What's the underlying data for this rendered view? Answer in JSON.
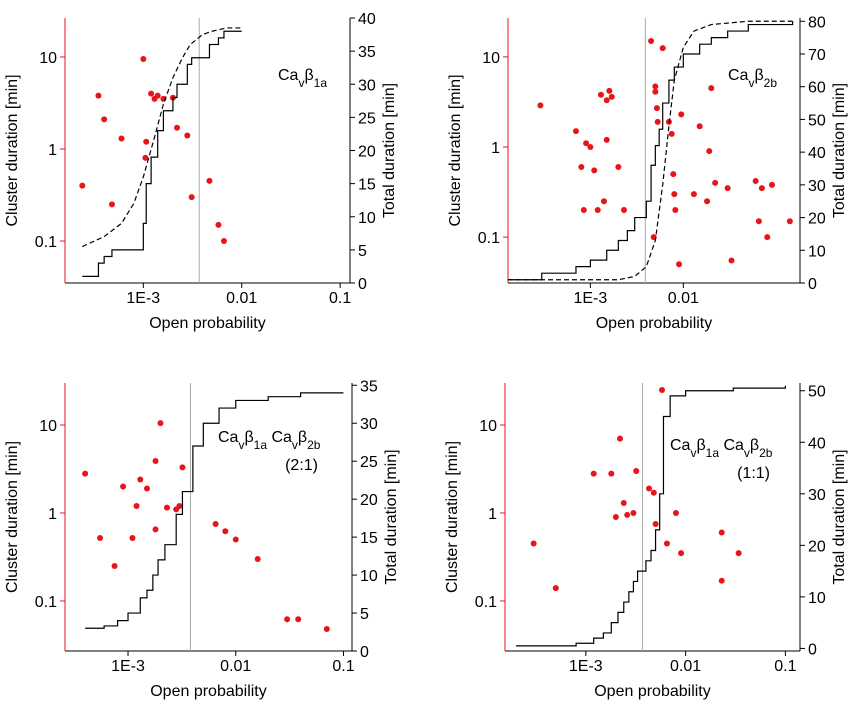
{
  "chart_data": [
    {
      "type": "scatter",
      "xlabel": "Open probability",
      "ylabel": "Cluster duration [min]",
      "y2label": "Total duration [min]",
      "annotation": [
        "Ca",
        "v",
        "β",
        "1a"
      ],
      "xscale": "log",
      "yscale": "log",
      "xlim": [
        0.00016,
        0.126
      ],
      "ylim": [
        0.035,
        26.5
      ],
      "y2lim": [
        0,
        40
      ],
      "xticks": [
        {
          "value": 0.001,
          "label": "1E-3"
        },
        0.01,
        0.1
      ],
      "yticks": [
        0.1,
        1,
        10
      ],
      "y2ticks": [
        0,
        5,
        10,
        15,
        20,
        25,
        30,
        35,
        40
      ],
      "reference_x": 0.0037,
      "ylabel_color": "#e8141b",
      "series": [
        {
          "kind": "points",
          "color": "#e8141b",
          "x": [
            0.00024,
            0.00035,
            0.0004,
            0.00048,
            0.0006,
            0.001,
            0.00105,
            0.00107,
            0.0012,
            0.0013,
            0.0014,
            0.0016,
            0.002,
            0.0022,
            0.0028,
            0.0031,
            0.0047,
            0.0058,
            0.0066
          ],
          "values": [
            0.4,
            3.8,
            2.1,
            0.25,
            1.3,
            9.5,
            0.8,
            1.2,
            4,
            3.5,
            3.8,
            3.5,
            3.6,
            1.7,
            1.4,
            0.3,
            0.45,
            0.15,
            0.1
          ]
        },
        {
          "kind": "step",
          "axis": "y2",
          "color": "#000000",
          "x": [
            0.00024,
            0.00035,
            0.0004,
            0.00048,
            0.001,
            0.00107,
            0.0012,
            0.0014,
            0.0016,
            0.002,
            0.0022,
            0.0028,
            0.0031,
            0.0047,
            0.0058,
            0.0066,
            0.01
          ],
          "values": [
            1,
            3,
            4,
            5,
            9,
            15,
            19,
            23,
            26,
            28,
            30,
            33,
            34,
            36,
            37,
            38,
            38
          ]
        },
        {
          "kind": "dashed",
          "axis": "y2",
          "color": "#000000",
          "x": [
            0.00024,
            0.0004,
            0.0006,
            0.0008,
            0.001,
            0.0013,
            0.0016,
            0.002,
            0.0025,
            0.003,
            0.004,
            0.005,
            0.007,
            0.01
          ],
          "values": [
            5.5,
            7,
            9,
            12,
            16,
            22,
            27,
            31,
            34,
            36,
            37.5,
            38,
            38.5,
            38.5
          ]
        }
      ]
    },
    {
      "type": "scatter",
      "xlabel": "Open probability",
      "ylabel": "Cluster duration [min]",
      "y2label": "Total duration [min]",
      "annotation": [
        "Ca",
        "v",
        "β",
        "2b"
      ],
      "xscale": "log",
      "yscale": "log",
      "xlim": [
        0.00013,
        0.18
      ],
      "ylim": [
        0.031,
        27
      ],
      "y2lim": [
        0,
        81
      ],
      "xticks": [
        {
          "value": 0.001,
          "label": "1E-3"
        },
        0.01
      ],
      "yticks": [
        0.1,
        1,
        10
      ],
      "y2ticks": [
        0,
        10,
        20,
        30,
        40,
        50,
        60,
        70,
        80
      ],
      "reference_x": 0.0039,
      "ylabel_color": "#e8141b",
      "series": [
        {
          "kind": "points",
          "color": "#e8141b",
          "x": [
            0.00029,
            0.0007,
            0.0008,
            0.00085,
            0.0009,
            0.001,
            0.0011,
            0.0012,
            0.0013,
            0.0014,
            0.0015,
            0.0015,
            0.0016,
            0.0017,
            0.002,
            0.0023,
            0.0045,
            0.0048,
            0.005,
            0.005,
            0.0052,
            0.0053,
            0.006,
            0.007,
            0.0075,
            0.0078,
            0.008,
            0.0082,
            0.009,
            0.0095,
            0.013,
            0.015,
            0.018,
            0.019,
            0.02,
            0.022,
            0.03,
            0.033,
            0.06,
            0.065,
            0.07,
            0.08,
            0.09,
            0.14
          ],
          "values": [
            2.9,
            1.5,
            0.6,
            0.2,
            1.1,
            1.0,
            0.55,
            0.2,
            3.8,
            0.25,
            1.2,
            3.3,
            4.2,
            3.6,
            0.6,
            0.2,
            15,
            0.1,
            4.7,
            4.1,
            2.7,
            1.9,
            12.5,
            1.9,
            1.4,
            0.5,
            0.3,
            0.2,
            0.05,
            2.3,
            0.3,
            1.7,
            0.25,
            0.9,
            4.5,
            0.4,
            0.35,
            0.055,
            0.42,
            0.15,
            0.35,
            0.1,
            0.38,
            0.15
          ]
        },
        {
          "kind": "step",
          "axis": "y2",
          "color": "#000000",
          "x": [
            0.00013,
            0.0003,
            0.0007,
            0.001,
            0.0015,
            0.002,
            0.0025,
            0.003,
            0.004,
            0.0045,
            0.005,
            0.0055,
            0.006,
            0.007,
            0.008,
            0.01,
            0.015,
            0.02,
            0.03,
            0.05,
            0.15
          ],
          "values": [
            1,
            3,
            5,
            7,
            10,
            13,
            16,
            20,
            25,
            36,
            42,
            47,
            55,
            62,
            66,
            70,
            73,
            75,
            77,
            79,
            80
          ]
        },
        {
          "kind": "dashed",
          "axis": "y2",
          "color": "#000000",
          "x": [
            0.00013,
            0.002,
            0.003,
            0.004,
            0.005,
            0.006,
            0.007,
            0.008,
            0.01,
            0.013,
            0.02,
            0.05,
            0.15
          ],
          "values": [
            1,
            1,
            2,
            5,
            13,
            30,
            48,
            62,
            72,
            77,
            79,
            80,
            80
          ]
        }
      ]
    },
    {
      "type": "scatter",
      "xlabel": "Open probability",
      "ylabel": "Cluster duration [min]",
      "y2label": "Total duration [min]",
      "annotation": [
        "Ca",
        "v",
        "β",
        "1a",
        " Ca",
        "v",
        "β",
        "2b"
      ],
      "annotation_line2": "(2:1)",
      "xscale": "log",
      "yscale": "log",
      "xlim": [
        0.00026,
        0.12
      ],
      "ylim": [
        0.027,
        30
      ],
      "y2lim": [
        0,
        35.3
      ],
      "xticks": [
        {
          "value": 0.001,
          "label": "1E-3"
        },
        0.01,
        0.1
      ],
      "yticks": [
        0.1,
        1,
        10
      ],
      "y2ticks": [
        0,
        5,
        10,
        15,
        20,
        25,
        30,
        35
      ],
      "reference_x": 0.0038,
      "ylabel_color": "#e8141b",
      "series": [
        {
          "kind": "points",
          "color": "#e8141b",
          "x": [
            0.0004,
            0.00055,
            0.00075,
            0.0009,
            0.0011,
            0.0012,
            0.0013,
            0.0015,
            0.0018,
            0.0018,
            0.002,
            0.0023,
            0.0028,
            0.003,
            0.0032,
            0.0065,
            0.008,
            0.01,
            0.016,
            0.03,
            0.038,
            0.07
          ],
          "values": [
            2.8,
            0.52,
            0.25,
            2,
            0.52,
            1.2,
            2.4,
            1.9,
            0.65,
            3.9,
            10.5,
            1.15,
            1.1,
            1.2,
            3.3,
            0.75,
            0.62,
            0.5,
            0.3,
            0.062,
            0.062,
            0.048
          ]
        },
        {
          "kind": "step",
          "axis": "y2",
          "color": "#000000",
          "x": [
            0.0004,
            0.0006,
            0.0008,
            0.001,
            0.0013,
            0.0015,
            0.0017,
            0.0019,
            0.0022,
            0.0028,
            0.0032,
            0.004,
            0.005,
            0.007,
            0.01,
            0.02,
            0.04,
            0.1
          ],
          "values": [
            3,
            3.3,
            4,
            5,
            7,
            8,
            10,
            12,
            14,
            18,
            21,
            27,
            30,
            32,
            33,
            33.5,
            34,
            34
          ]
        }
      ]
    },
    {
      "type": "scatter",
      "xlabel": "Open probability",
      "ylabel": "Cluster duration [min]",
      "y2label": "Total duration [min]",
      "annotation": [
        "Ca",
        "v",
        "β",
        "1a",
        " Ca",
        "v",
        "β",
        "2b"
      ],
      "annotation_line2": "(1:1)",
      "xscale": "log",
      "yscale": "log",
      "xlim": [
        0.000155,
        0.14
      ],
      "ylim": [
        0.027,
        30
      ],
      "y2lim": [
        -0.5,
        51.5
      ],
      "xticks": [
        {
          "value": 0.001,
          "label": "1E-3"
        },
        0.01,
        0.1
      ],
      "yticks": [
        0.1,
        1,
        10
      ],
      "y2ticks": [
        0,
        10,
        20,
        30,
        40,
        50
      ],
      "reference_x": 0.0037,
      "ylabel_color": "#e8141b",
      "series": [
        {
          "kind": "points",
          "color": "#e8141b",
          "x": [
            0.0003,
            0.0005,
            0.0012,
            0.0018,
            0.002,
            0.0022,
            0.0024,
            0.0026,
            0.003,
            0.0032,
            0.0043,
            0.0048,
            0.005,
            0.0058,
            0.0065,
            0.008,
            0.009,
            0.023,
            0.023,
            0.034
          ],
          "values": [
            0.45,
            0.14,
            2.8,
            2.8,
            0.9,
            7,
            1.3,
            0.95,
            1,
            3,
            1.9,
            1.7,
            0.75,
            25,
            0.45,
            1,
            0.35,
            0.6,
            0.17,
            0.35
          ]
        },
        {
          "kind": "step",
          "axis": "y2",
          "color": "#000000",
          "x": [
            0.0002,
            0.0008,
            0.0012,
            0.0015,
            0.0018,
            0.0021,
            0.0024,
            0.0027,
            0.003,
            0.0033,
            0.004,
            0.0045,
            0.005,
            0.0055,
            0.006,
            0.007,
            0.01,
            0.03,
            0.1
          ],
          "values": [
            0.5,
            1,
            2,
            3,
            5,
            7,
            9,
            11,
            13,
            15,
            17,
            19,
            23,
            30,
            45,
            49,
            50,
            50.5,
            51
          ]
        }
      ]
    }
  ]
}
